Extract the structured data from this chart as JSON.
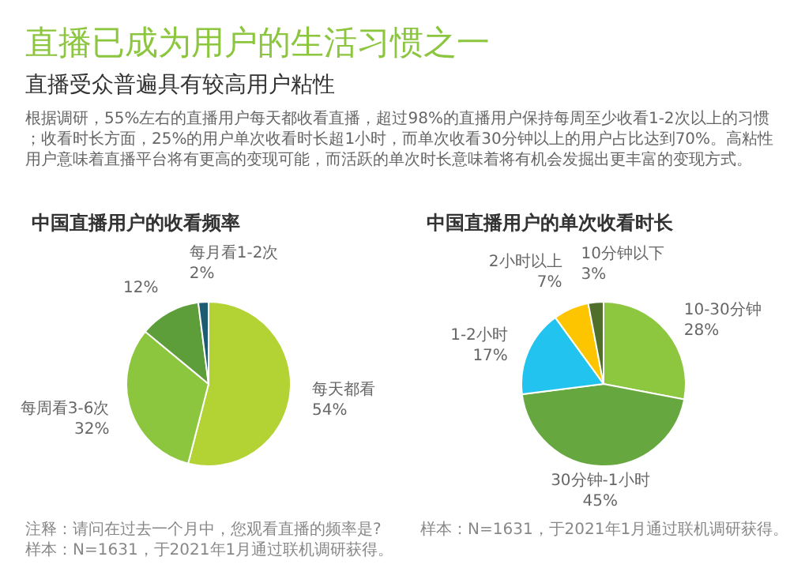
{
  "chart_data": [
    {
      "type": "other",
      "title": "直播已成为用户的生活习惯之一",
      "subtitle": "直播受众普遍具有较高用户粘性",
      "annotations": [
        "根据调研，55%左右的直播用户每天都收看直播，超过98%的直播用户保持每周至少收看1-2次以上的习惯；收看时长方面，25%的用户单次收看时长超1小时，而单次收看30分钟以上的用户占比达到70%。高粘性用户意味着直播平台将有更高的变现可能，而活跃的单次时长意味着将有机会发掘出更丰富的变现方式。"
      ]
    },
    {
      "type": "pie",
      "title": "中国直播用户的收看频率",
      "categories": [
        "每天都看",
        "每周看3-6次",
        null,
        "每月看1-2次"
      ],
      "values": [
        54,
        32,
        12,
        2
      ],
      "value_labels": [
        "54%",
        "32%",
        "12%",
        "2%"
      ],
      "colors": [
        "#b3d233",
        "#8cc63e",
        "#5d9e3a",
        "#1d5a73"
      ],
      "annotations": [
        "注释：请问在过去一个月中，您观看直播的频率是?",
        "样本：N=1631，于2021年1月通过联机调研获得。"
      ]
    },
    {
      "type": "pie",
      "title": "中国直播用户的单次收看时长",
      "categories": [
        "10-30分钟",
        "30分钟-1小时",
        "1-2小时",
        "2小时以上",
        "10分钟以下"
      ],
      "values": [
        28,
        45,
        17,
        7,
        3
      ],
      "value_labels": [
        "28%",
        "45%",
        "17%",
        "7%",
        "3%"
      ],
      "colors": [
        "#8dc63f",
        "#66a83f",
        "#22c3ee",
        "#fcc500",
        "#4f6f2a"
      ],
      "annotations": [
        "样本：N=1631，于2021年1月通过联机调研获得。"
      ]
    }
  ]
}
